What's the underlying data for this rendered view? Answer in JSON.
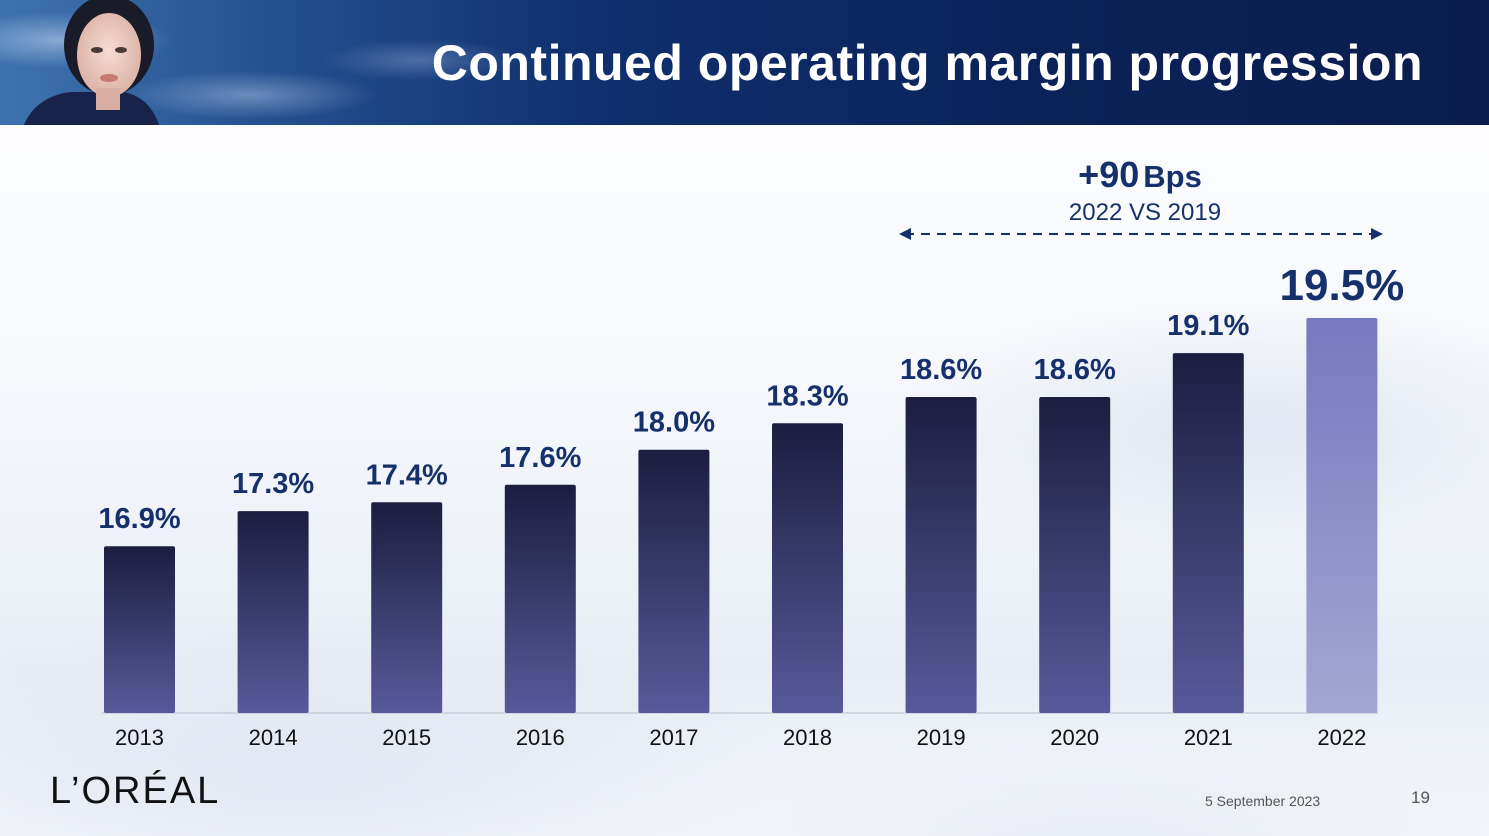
{
  "slide": {
    "title": "Continued operating margin progression",
    "footer": {
      "logo_text": "L’ORÉAL",
      "date": "5 September 2023",
      "page_number": "19"
    },
    "annotation": {
      "value": "+90",
      "unit": "Bps",
      "comparison": "2022 VS 2019"
    }
  },
  "colors": {
    "header_blue": "#0b2258",
    "label_blue": "#15306b",
    "bar_dark": "#1c1d3f",
    "bar_light": "#575a9a",
    "highlight_top": "#7679bf",
    "highlight_bottom": "#a4a6d2"
  },
  "icons": [
    "model-photo"
  ],
  "chart_data": {
    "type": "bar",
    "title": "Continued operating margin progression",
    "categories": [
      "2013",
      "2014",
      "2015",
      "2016",
      "2017",
      "2018",
      "2019",
      "2020",
      "2021",
      "2022"
    ],
    "values": [
      16.9,
      17.3,
      17.4,
      17.6,
      18.0,
      18.3,
      18.6,
      18.6,
      19.1,
      19.5
    ],
    "data_labels": [
      "16.9%",
      "17.3%",
      "17.4%",
      "17.6%",
      "18.0%",
      "18.3%",
      "18.6%",
      "18.6%",
      "19.1%",
      "19.5%"
    ],
    "unit": "%",
    "highlight_category": "2022",
    "ylim": [
      15.0,
      19.5
    ],
    "grid": false,
    "legend": "none",
    "annotation": {
      "text": "+90 Bps",
      "subtext": "2022 VS 2019",
      "from": "2019",
      "to": "2022",
      "style": "dashed double arrow"
    }
  }
}
